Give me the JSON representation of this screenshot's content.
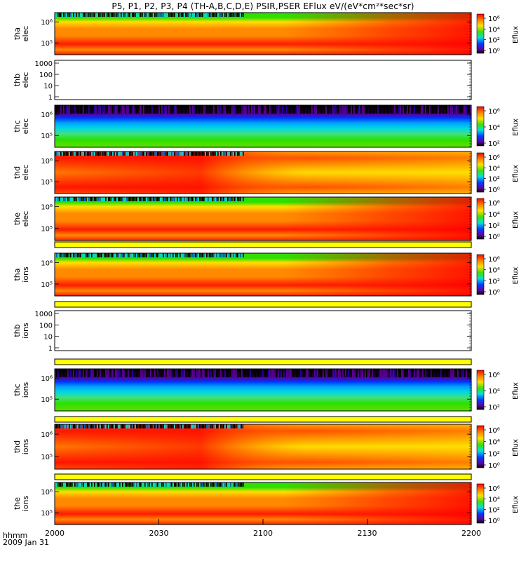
{
  "title": "P5, P1, P2, P3, P4 (TH-A,B,C,D,E) PSIR,PSER EFlux eV/(eV*cm²*sec*sr)",
  "footer": {
    "time_label": "hhmm",
    "date_label": "2009 Jan 31"
  },
  "colors": {
    "red": "#ff1a00",
    "orange": "#ff8a00",
    "yellow": "#ffe000",
    "green": "#2ce000",
    "cyan": "#00d8e0",
    "blue": "#0030ff",
    "purple": "#5a0090",
    "black": "#000000",
    "separator": "#ffff00"
  },
  "chart_data": {
    "type": "heatmap",
    "x_ticks": [
      "2000",
      "2030",
      "2100",
      "2130",
      "2200"
    ],
    "x_range": [
      "2000",
      "2200"
    ],
    "colorbar_label": "Eflux",
    "panels": [
      {
        "id": "tha-elec",
        "ylabel": [
          "tha",
          "elec"
        ],
        "y_ticks": [
          "10⁶",
          "10⁵"
        ],
        "colorbar": true,
        "colorbar_ticks": [
          "10⁶",
          "10⁴",
          "10²",
          "10⁰"
        ],
        "empty": false,
        "style": "A"
      },
      {
        "id": "thb-elec",
        "ylabel": [
          "thb",
          "elec"
        ],
        "y_ticks": [
          "1000",
          "100",
          "10",
          "1"
        ],
        "colorbar": false,
        "colorbar_ticks": [],
        "empty": true,
        "style": "empty"
      },
      {
        "id": "thc-elec",
        "ylabel": [
          "thc",
          "elec"
        ],
        "y_ticks": [
          "10⁶",
          "10⁵"
        ],
        "colorbar": true,
        "colorbar_ticks": [
          "10⁶",
          "10⁴",
          "10²"
        ],
        "empty": false,
        "style": "C"
      },
      {
        "id": "thd-elec",
        "ylabel": [
          "thd",
          "elec"
        ],
        "y_ticks": [
          "10⁶",
          "10⁵"
        ],
        "colorbar": true,
        "colorbar_ticks": [
          "10⁶",
          "10⁴",
          "10²",
          "10⁰"
        ],
        "empty": false,
        "style": "D"
      },
      {
        "id": "the-elec",
        "ylabel": [
          "the",
          "elec"
        ],
        "y_ticks": [
          "10⁶",
          "10⁵"
        ],
        "colorbar": true,
        "colorbar_ticks": [
          "10⁶",
          "10⁴",
          "10²",
          "10⁰"
        ],
        "empty": false,
        "style": "A"
      },
      {
        "id": "tha-ions",
        "ylabel": [
          "tha",
          "ions"
        ],
        "y_ticks": [
          "10⁶",
          "10⁵"
        ],
        "colorbar": true,
        "colorbar_ticks": [
          "10⁶",
          "10⁴",
          "10²",
          "10⁰"
        ],
        "empty": false,
        "style": "A"
      },
      {
        "id": "thb-ions",
        "ylabel": [
          "thb",
          "ions"
        ],
        "y_ticks": [
          "1000",
          "100",
          "10",
          "1"
        ],
        "colorbar": false,
        "colorbar_ticks": [],
        "empty": true,
        "style": "empty"
      },
      {
        "id": "thc-ions",
        "ylabel": [
          "thc",
          "ions"
        ],
        "y_ticks": [
          "10⁶",
          "10⁵"
        ],
        "colorbar": true,
        "colorbar_ticks": [
          "10⁶",
          "10⁴",
          "10²"
        ],
        "empty": false,
        "style": "C"
      },
      {
        "id": "thd-ions",
        "ylabel": [
          "thd",
          "ions"
        ],
        "y_ticks": [
          "10⁶",
          "10⁵"
        ],
        "colorbar": true,
        "colorbar_ticks": [
          "10⁶",
          "10⁴",
          "10²",
          "10⁰"
        ],
        "empty": false,
        "style": "D"
      },
      {
        "id": "the-ions",
        "ylabel": [
          "the",
          "ions"
        ],
        "y_ticks": [
          "10⁶",
          "10⁵"
        ],
        "colorbar": true,
        "colorbar_ticks": [
          "10⁶",
          "10⁴",
          "10²",
          "10⁰"
        ],
        "empty": false,
        "style": "A"
      }
    ]
  }
}
